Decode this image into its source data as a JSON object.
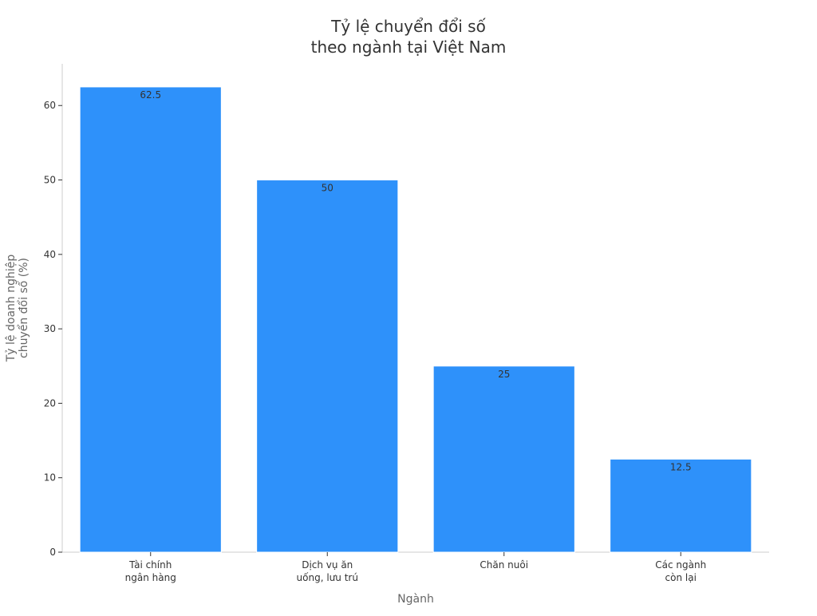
{
  "chart_data": {
    "type": "bar",
    "title_lines": [
      "Tỷ lệ chuyển đổi số",
      "theo ngành tại Việt Nam"
    ],
    "xlabel": "Ngành",
    "ylabel_lines": [
      "Tỷ lệ doanh nghiệp",
      "chuyển đổi số (%)"
    ],
    "categories": [
      [
        "Tài chính",
        "ngân hàng"
      ],
      [
        "Dịch vụ ăn",
        "uống, lưu trú"
      ],
      [
        "Chăn nuôi"
      ],
      [
        "Các ngành",
        "còn lại"
      ]
    ],
    "values": [
      62.5,
      50,
      25,
      12.5
    ],
    "value_labels": [
      "62.5",
      "50",
      "25",
      "12.5"
    ],
    "yticks": [
      0,
      10,
      20,
      30,
      40,
      50,
      60
    ],
    "ylim": [
      0,
      65.6
    ],
    "grid": false,
    "legend": "none",
    "colors": {
      "bar": "#2e91fa",
      "axis": "#cccccc",
      "text": "#333333",
      "label": "#666666"
    }
  }
}
